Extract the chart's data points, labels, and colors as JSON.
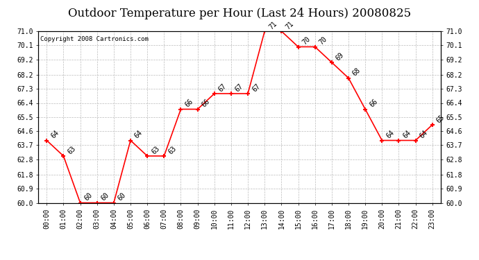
{
  "title": "Outdoor Temperature per Hour (Last 24 Hours) 20080825",
  "copyright_text": "Copyright 2008 Cartronics.com",
  "hours": [
    "00:00",
    "01:00",
    "02:00",
    "03:00",
    "04:00",
    "05:00",
    "06:00",
    "07:00",
    "08:00",
    "09:00",
    "10:00",
    "11:00",
    "12:00",
    "13:00",
    "14:00",
    "15:00",
    "16:00",
    "17:00",
    "18:00",
    "19:00",
    "20:00",
    "21:00",
    "22:00",
    "23:00"
  ],
  "temps": [
    64,
    63,
    60,
    60,
    60,
    64,
    63,
    63,
    66,
    66,
    67,
    67,
    67,
    71,
    71,
    70,
    70,
    69,
    68,
    66,
    64,
    64,
    64,
    65
  ],
  "ylim_min": 60.0,
  "ylim_max": 71.0,
  "yticks": [
    60.0,
    60.9,
    61.8,
    62.8,
    63.7,
    64.6,
    65.5,
    66.4,
    67.3,
    68.2,
    69.2,
    70.1,
    71.0
  ],
  "ytick_labels": [
    "60.0",
    "60.9",
    "61.8",
    "62.8",
    "63.7",
    "64.6",
    "65.5",
    "66.4",
    "67.3",
    "68.2",
    "69.2",
    "70.1",
    "71.0"
  ],
  "line_color": "red",
  "grid_color": "#bbbbbb",
  "bg_color": "white",
  "title_fontsize": 12,
  "tick_fontsize": 7,
  "annotation_fontsize": 7,
  "copyright_fontsize": 6.5
}
